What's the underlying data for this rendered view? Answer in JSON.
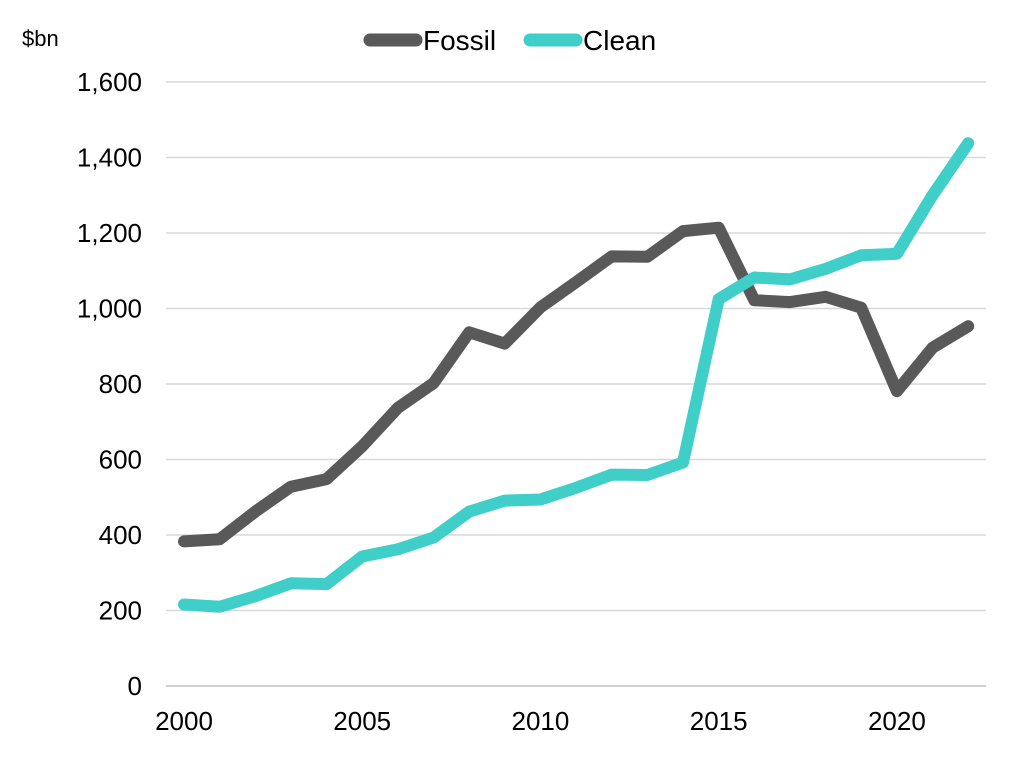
{
  "chart_data": {
    "type": "line",
    "title": "",
    "xlabel": "",
    "ylabel": "$bn",
    "x": [
      2000,
      2001,
      2002,
      2003,
      2004,
      2005,
      2006,
      2007,
      2008,
      2009,
      2010,
      2011,
      2012,
      2013,
      2014,
      2015,
      2016,
      2017,
      2018,
      2019,
      2020,
      2021,
      2022
    ],
    "xticks": [
      "2000",
      "2005",
      "2010",
      "2015",
      "2020"
    ],
    "xlim": [
      2000,
      2022.5
    ],
    "ylim": [
      0,
      1600
    ],
    "yticks": [
      "0",
      "200",
      "400",
      "600",
      "800",
      "1,000",
      "1,200",
      "1,400",
      "1,600"
    ],
    "grid": true,
    "legend_position": "top-center",
    "series": [
      {
        "name": "Fossil",
        "color": "#595959",
        "values": [
          383,
          389,
          462,
          528,
          548,
          635,
          737,
          802,
          937,
          907,
          1003,
          1070,
          1138,
          1137,
          1205,
          1214,
          1022,
          1017,
          1031,
          1002,
          781,
          896,
          953
        ]
      },
      {
        "name": "Clean",
        "color": "#3fcfc8",
        "values": [
          216,
          210,
          238,
          272,
          270,
          343,
          362,
          393,
          462,
          491,
          494,
          525,
          560,
          559,
          592,
          1025,
          1082,
          1077,
          1105,
          1141,
          1145,
          1300,
          1438
        ]
      }
    ]
  }
}
